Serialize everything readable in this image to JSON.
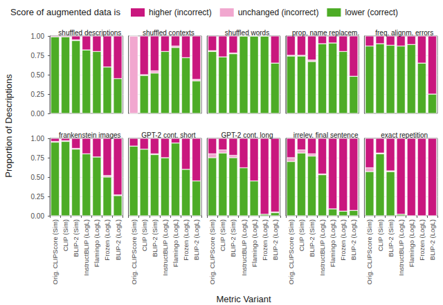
{
  "chart_data": {
    "type": "bar",
    "stacked": true,
    "grid": true,
    "legend": "top",
    "legend_title": "Score of augmented data is",
    "x_label": "Metric Variant",
    "y_label": "Proportion of Descriptions",
    "categories": [
      "Orig. CLIPScore (Sim)",
      "CLIP (Sim)",
      "BLIP-2 (Sim)",
      "InstructBLIP (LogL)",
      "Flamingo (LogL)",
      "Frozen (LogL)",
      "BLIP-2 (LogL)"
    ],
    "ylim": [
      0,
      1
    ],
    "yticks": [
      {
        "value": 0,
        "label": "0.00"
      },
      {
        "value": 0.25,
        "label": "0.25"
      },
      {
        "value": 0.5,
        "label": "0.50"
      },
      {
        "value": 0.75,
        "label": "0.75"
      },
      {
        "value": 1,
        "label": "1.00"
      }
    ],
    "series": [
      {
        "name": "higher (incorrect)",
        "color": "#c9177e"
      },
      {
        "name": "unchanged (incorrect)",
        "color": "#f1a7cf"
      },
      {
        "name": "lower (correct)",
        "color": "#4dac26"
      }
    ],
    "panels": [
      {
        "title": "shuffled descriptions",
        "values": [
          [
            0.01,
            0.01,
            0.05,
            0.18,
            0.2,
            0.4,
            0.55
          ],
          [
            0,
            0,
            0.01,
            0,
            0,
            0,
            0
          ],
          [
            0.99,
            0.99,
            0.94,
            0.82,
            0.8,
            0.6,
            0.45
          ]
        ]
      },
      {
        "title": "shuffled contexts",
        "values": [
          [
            0,
            0.5,
            0.45,
            0.2,
            0.13,
            0.28,
            0.56
          ],
          [
            1.0,
            0.01,
            0.03,
            0,
            0.02,
            0,
            0.02
          ],
          [
            0,
            0.49,
            0.52,
            0.8,
            0.85,
            0.72,
            0.42
          ]
        ]
      },
      {
        "title": "shuffled words",
        "values": [
          [
            0.19,
            0.27,
            0.22,
            0,
            0,
            0,
            0.35
          ],
          [
            0.01,
            0,
            0.01,
            0,
            0,
            0,
            0
          ],
          [
            0.8,
            0.73,
            0.77,
            1.0,
            1.0,
            1.0,
            0.65
          ]
        ]
      },
      {
        "title": "prop. name replacem.",
        "values": [
          [
            0.25,
            0.25,
            0.31,
            0.1,
            0.09,
            0.2,
            0.52
          ],
          [
            0.01,
            0.01,
            0.02,
            0,
            0,
            0,
            0
          ],
          [
            0.74,
            0.74,
            0.67,
            0.9,
            0.91,
            0.8,
            0.48
          ]
        ]
      },
      {
        "title": "freq. alignm. errors",
        "values": [
          [
            0.13,
            0.1,
            0.12,
            0.13,
            0.11,
            0.35,
            0.75
          ],
          [
            0,
            0,
            0,
            0,
            0,
            0,
            0
          ],
          [
            0.87,
            0.9,
            0.88,
            0.87,
            0.89,
            0.65,
            0.25
          ]
        ]
      },
      {
        "title": "frankenstein images",
        "values": [
          [
            0.04,
            0.03,
            0.13,
            0.2,
            0.24,
            0.48,
            0.73
          ],
          [
            0.01,
            0.01,
            0.01,
            0,
            0,
            0.02,
            0.01
          ],
          [
            0.95,
            0.96,
            0.86,
            0.8,
            0.76,
            0.5,
            0.26
          ]
        ]
      },
      {
        "title": "GPT-2 cont. short",
        "values": [
          [
            0.1,
            0.14,
            0.2,
            0.25,
            0.06,
            0.4,
            0.55
          ],
          [
            0,
            0,
            0.01,
            0,
            0,
            0,
            0
          ],
          [
            0.9,
            0.86,
            0.79,
            0.75,
            0.94,
            0.6,
            0.45
          ]
        ]
      },
      {
        "title": "GPT-2 cont. long",
        "values": [
          [
            0.2,
            0.15,
            0.22,
            0.38,
            0.55,
            0.98,
            0.95
          ],
          [
            0.05,
            0.04,
            0.03,
            0,
            0,
            0,
            0.01
          ],
          [
            0.75,
            0.81,
            0.75,
            0.62,
            0.45,
            0.02,
            0.04
          ]
        ]
      },
      {
        "title": "irrelev. final sentence",
        "values": [
          [
            0.25,
            0.15,
            0.2,
            0.46,
            0.91,
            0.94,
            0.93
          ],
          [
            0.05,
            0.04,
            0.03,
            0.01,
            0,
            0,
            0
          ],
          [
            0.7,
            0.81,
            0.77,
            0.53,
            0.09,
            0.06,
            0.07
          ]
        ]
      },
      {
        "title": "exact repetition",
        "values": [
          [
            0.38,
            0.19,
            0.42,
            0.98,
            1.0,
            1.0,
            1.0
          ],
          [
            0.05,
            0.01,
            0.01,
            0,
            0,
            0,
            0
          ],
          [
            0.57,
            0.8,
            0.57,
            0.02,
            0,
            0,
            0
          ]
        ]
      }
    ]
  }
}
